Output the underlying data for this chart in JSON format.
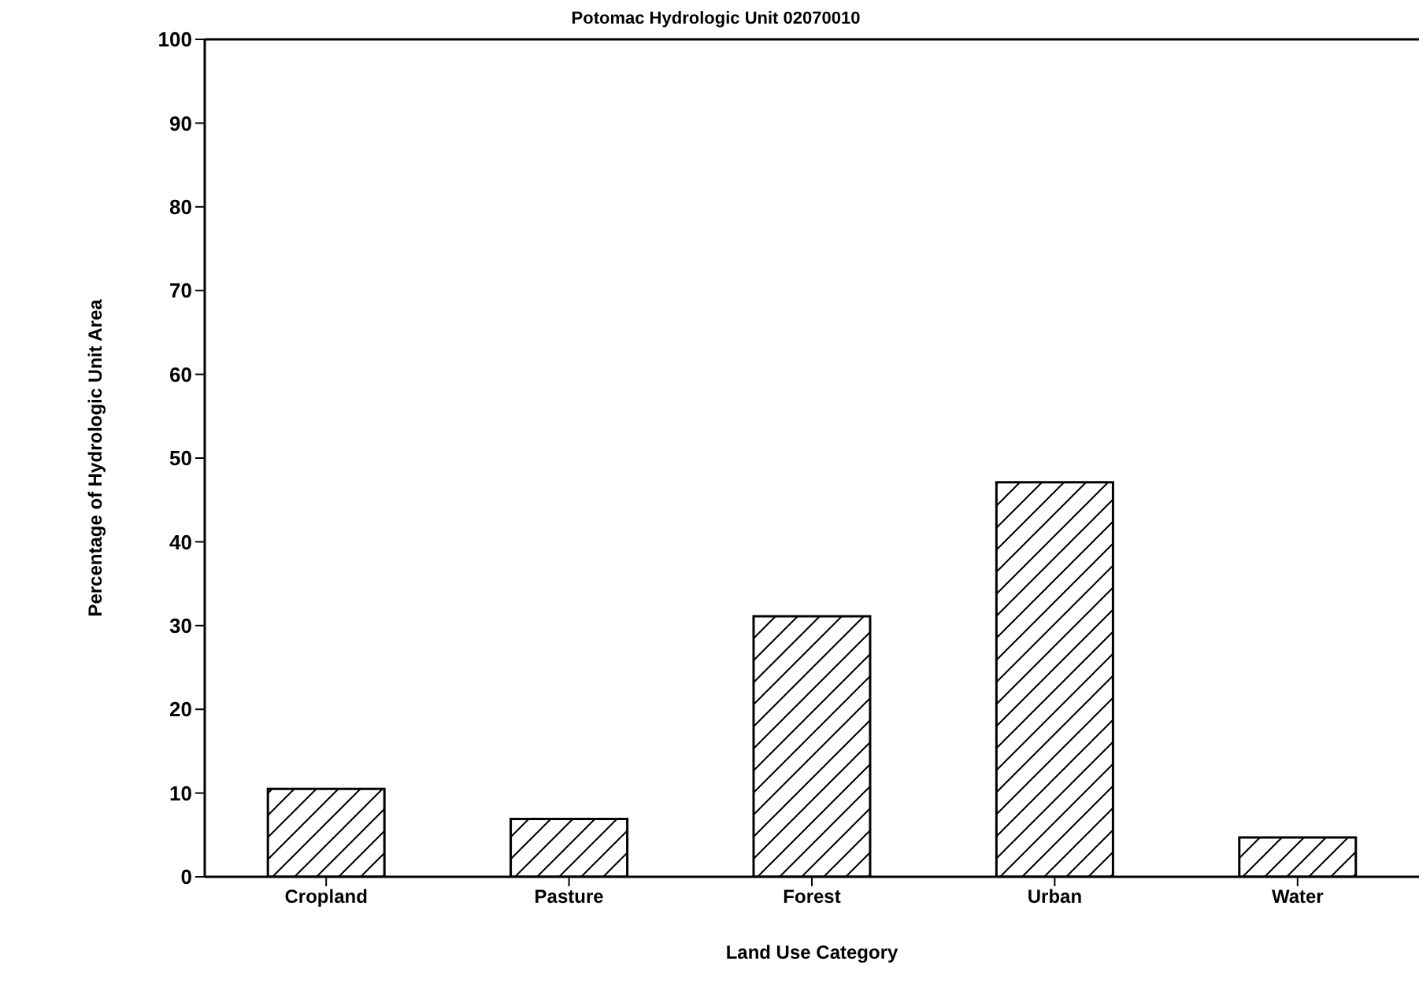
{
  "chart_data": {
    "type": "bar",
    "title": "Potomac Hydrologic Unit 02070010",
    "xlabel": "Land Use Category",
    "ylabel": "Percentage of Hydrologic Unit Area",
    "categories": [
      "Cropland",
      "Pasture",
      "Forest",
      "Urban",
      "Water"
    ],
    "values": [
      10.5,
      6.9,
      31.1,
      47.1,
      4.7
    ],
    "color": "#000000",
    "ylim": [
      0,
      100
    ],
    "yticks": [
      0,
      10,
      20,
      30,
      40,
      50,
      60,
      70,
      80,
      90,
      100
    ],
    "grid": false,
    "legend": false
  }
}
